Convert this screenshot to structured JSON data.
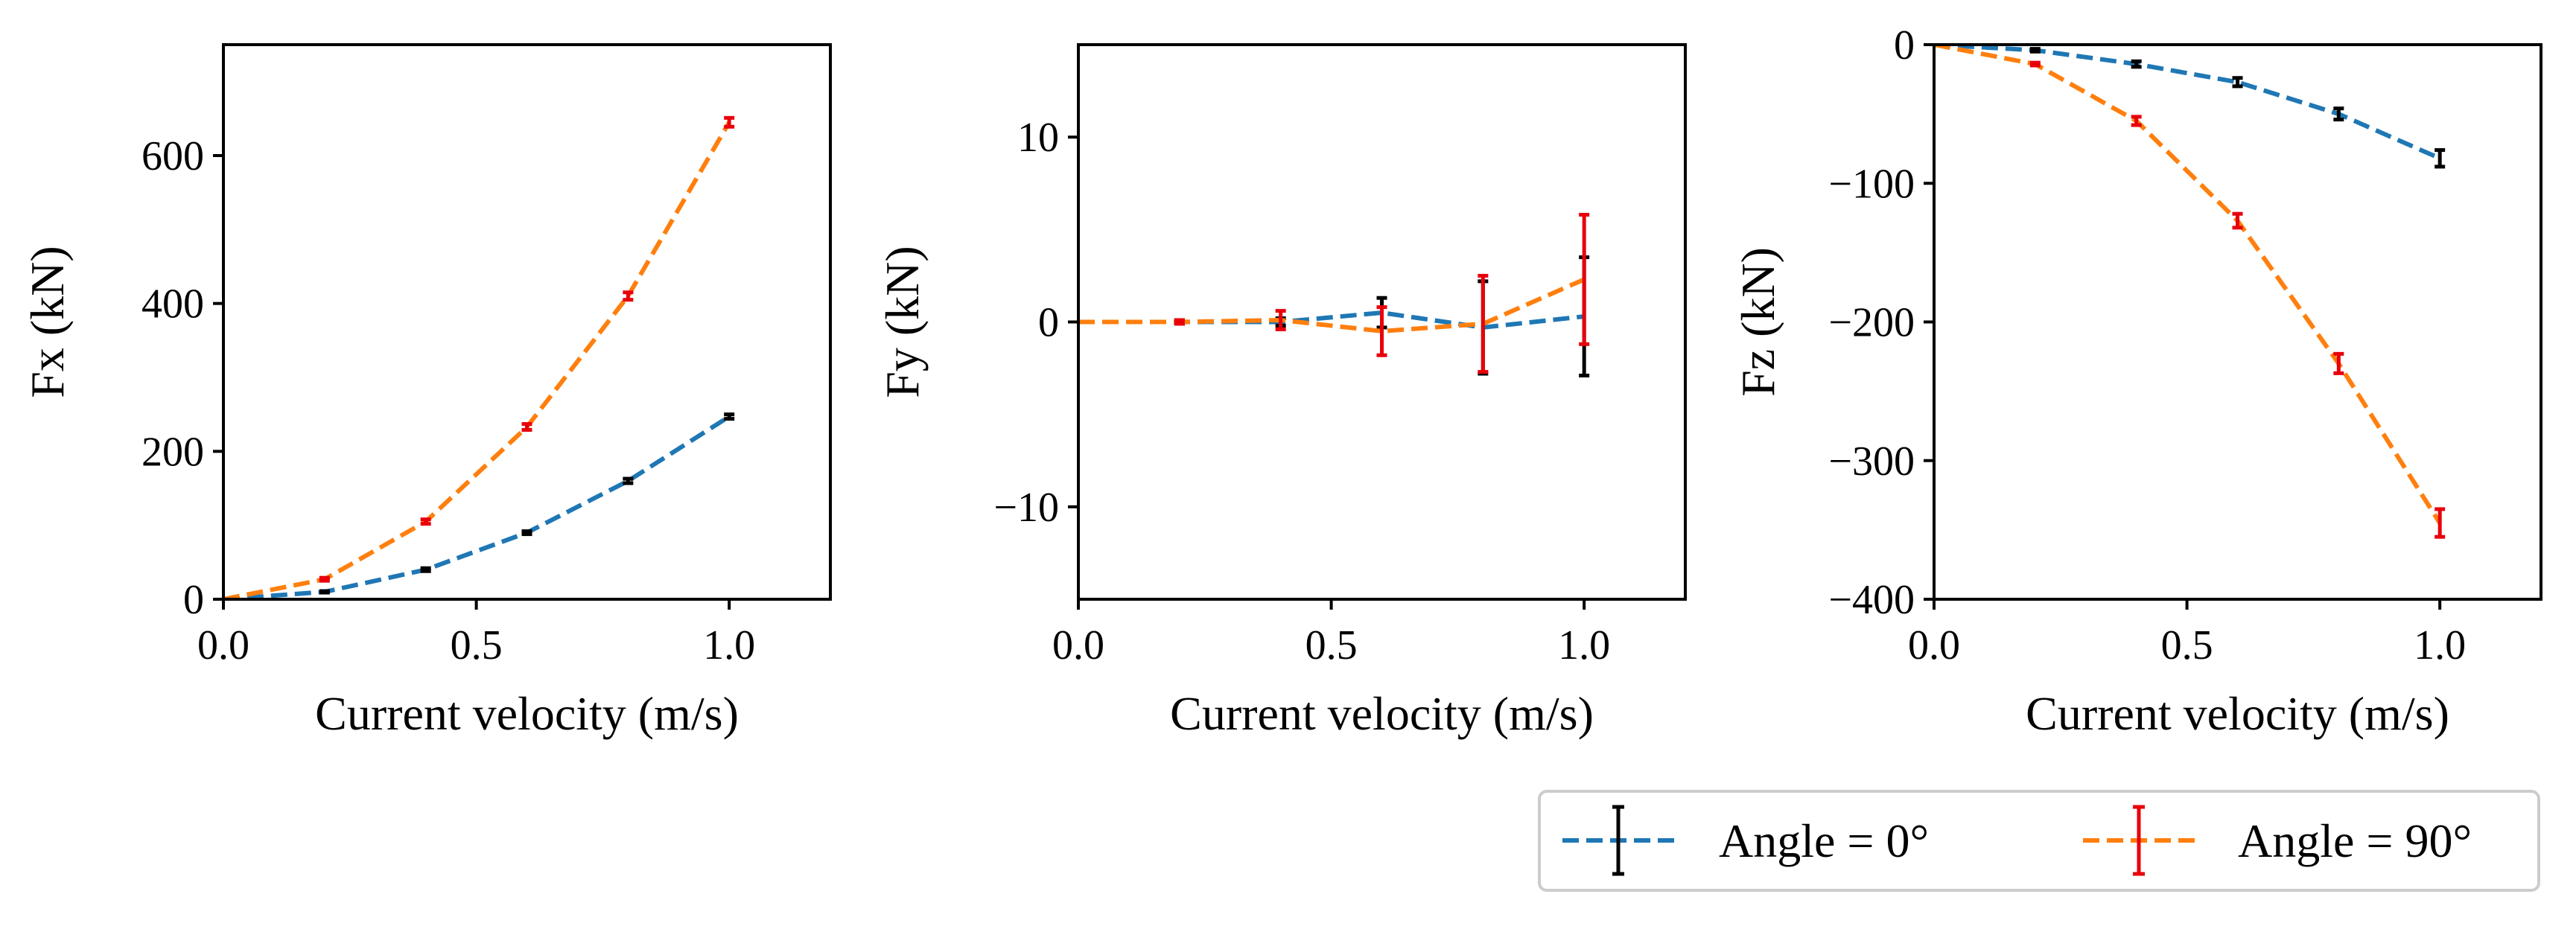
{
  "colors": {
    "series_0": "#1f77b4",
    "series_90": "#ff7f0e",
    "err_0": "#000000",
    "err_90": "#e8000b"
  },
  "legend": {
    "entries": [
      "Angle = 0°",
      "Angle = 90°"
    ],
    "placement": "bottom-right"
  },
  "chart_data": [
    {
      "type": "line",
      "title": "",
      "xlabel": "Current velocity (m/s)",
      "ylabel": "Fx (kN)",
      "xlim": [
        0,
        1.2
      ],
      "ylim": [
        0,
        750
      ],
      "xticks": [
        0,
        0.5,
        1.0
      ],
      "xtick_labels": [
        "0.0",
        "0.5",
        "1.0"
      ],
      "yticks": [
        0,
        200,
        400,
        600
      ],
      "ytick_labels": [
        "0",
        "200",
        "400",
        "600"
      ],
      "x": [
        0,
        0.2,
        0.4,
        0.6,
        0.8,
        1.0
      ],
      "series": [
        {
          "name": "Angle = 0°",
          "values": [
            0,
            10,
            40,
            90,
            160,
            247
          ],
          "errors": [
            0,
            1,
            2,
            2,
            3,
            3
          ]
        },
        {
          "name": "Angle = 90°",
          "values": [
            0,
            27,
            105,
            233,
            410,
            645
          ],
          "errors": [
            0,
            2,
            3,
            4,
            5,
            6
          ]
        }
      ]
    },
    {
      "type": "line",
      "title": "",
      "xlabel": "Current velocity (m/s)",
      "ylabel": "Fy (kN)",
      "xlim": [
        0,
        1.2
      ],
      "ylim": [
        -15,
        15
      ],
      "xticks": [
        0,
        0.5,
        1.0
      ],
      "xtick_labels": [
        "0.0",
        "0.5",
        "1.0"
      ],
      "yticks": [
        -10,
        0,
        10
      ],
      "ytick_labels": [
        "−10",
        "0",
        "10"
      ],
      "x": [
        0,
        0.2,
        0.4,
        0.6,
        0.8,
        1.0
      ],
      "series": [
        {
          "name": "Angle = 0°",
          "values": [
            0,
            0,
            0,
            0.5,
            -0.3,
            0.3
          ],
          "errors": [
            0,
            0.1,
            0.2,
            0.8,
            2.5,
            3.2
          ]
        },
        {
          "name": "Angle = 90°",
          "values": [
            0,
            0,
            0.1,
            -0.5,
            -0.1,
            2.3
          ],
          "errors": [
            0,
            0.1,
            0.5,
            1.3,
            2.6,
            3.5
          ]
        }
      ]
    },
    {
      "type": "line",
      "title": "",
      "xlabel": "Current velocity (m/s)",
      "ylabel": "Fz (kN)",
      "xlim": [
        0,
        1.2
      ],
      "ylim": [
        -400,
        0
      ],
      "xticks": [
        0,
        0.5,
        1.0
      ],
      "xtick_labels": [
        "0.0",
        "0.5",
        "1.0"
      ],
      "yticks": [
        -400,
        -300,
        -200,
        -100,
        0
      ],
      "ytick_labels": [
        "−400",
        "−300",
        "−200",
        "−100",
        "0"
      ],
      "x": [
        0,
        0.2,
        0.4,
        0.6,
        0.8,
        1.0
      ],
      "series": [
        {
          "name": "Angle = 0°",
          "values": [
            0,
            -4,
            -14,
            -27,
            -50,
            -82
          ],
          "errors": [
            0,
            1,
            2,
            3,
            4,
            6
          ]
        },
        {
          "name": "Angle = 90°",
          "values": [
            0,
            -14,
            -55,
            -127,
            -230,
            -345
          ],
          "errors": [
            0,
            1,
            3,
            5,
            7,
            10
          ]
        }
      ]
    }
  ]
}
